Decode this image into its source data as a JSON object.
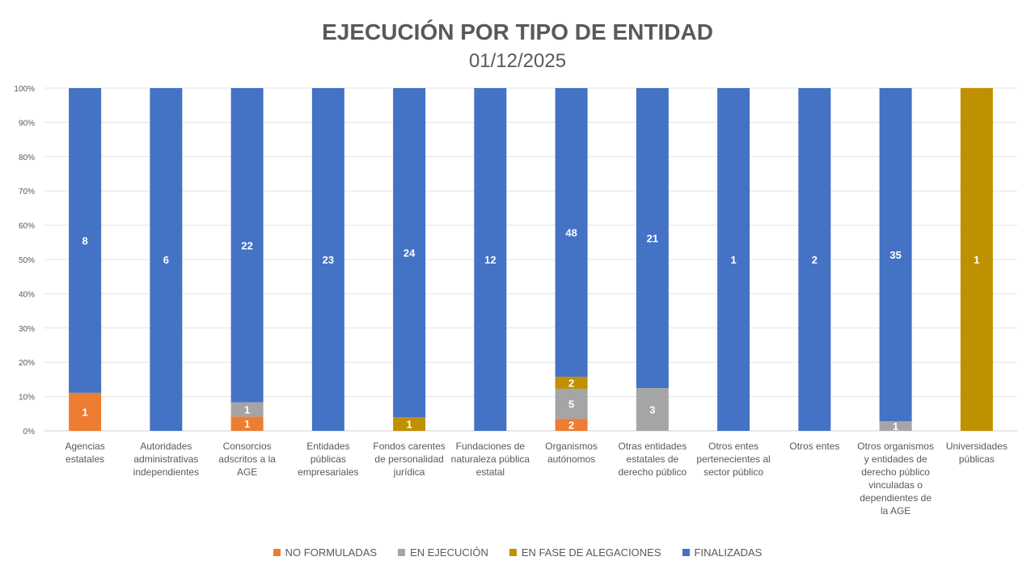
{
  "chart_data": {
    "type": "bar",
    "stacked": "percent",
    "title": "EJECUCIÓN POR TIPO DE ENTIDAD",
    "subtitle": "01/12/2025",
    "xlabel": "",
    "ylabel": "",
    "ylim": [
      0,
      100
    ],
    "yticks": [
      "0%",
      "10%",
      "20%",
      "30%",
      "40%",
      "50%",
      "60%",
      "70%",
      "80%",
      "90%",
      "100%"
    ],
    "grid": true,
    "legend_position": "bottom",
    "categories": [
      "Agencias estatales",
      "Autoridades administrativas independientes",
      "Consorcios adscritos a la AGE",
      "Entidades públicas empresariales",
      "Fondos carentes de personalidad jurídica",
      "Fundaciones de naturaleza pública estatal",
      "Organismos autónomos",
      "Otras entidades estatales de derecho público",
      "Otros entes pertenecientes al sector público",
      "Otros entes",
      "Otros organismos y entidades de derecho público vinculadas o dependientes de la AGE",
      "Universidades públicas"
    ],
    "series": [
      {
        "name": "NO FORMULADAS",
        "color": "#ED7D31",
        "values": [
          1,
          0,
          1,
          0,
          0,
          0,
          2,
          0,
          0,
          0,
          0,
          0
        ]
      },
      {
        "name": "EN EJECUCIÓN",
        "color": "#A5A5A5",
        "values": [
          0,
          0,
          1,
          0,
          0,
          0,
          5,
          3,
          0,
          0,
          1,
          0
        ]
      },
      {
        "name": "EN FASE DE ALEGACIONES",
        "color": "#BF9000",
        "values": [
          0,
          0,
          0,
          0,
          1,
          0,
          2,
          0,
          0,
          0,
          0,
          1
        ]
      },
      {
        "name": "FINALIZADAS",
        "color": "#4472C4",
        "values": [
          8,
          6,
          22,
          23,
          24,
          12,
          48,
          21,
          1,
          2,
          35,
          0
        ]
      }
    ]
  }
}
